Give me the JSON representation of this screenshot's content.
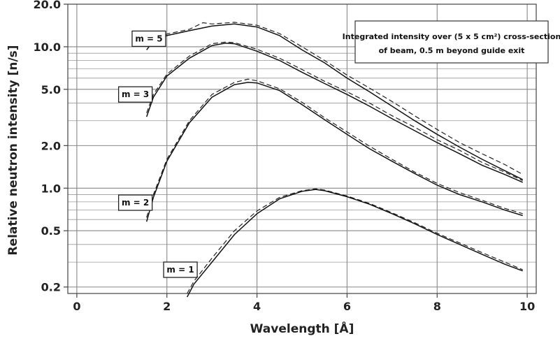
{
  "chart_data": {
    "type": "line",
    "xlabel": "Wavelength [Å]",
    "ylabel": "Relative neutron intensity [n/s]",
    "xlim": [
      -0.2,
      10.2
    ],
    "ylim": [
      0.18,
      20
    ],
    "yscale": "log",
    "grid": true,
    "x_ticks": [
      0,
      2,
      4,
      6,
      8,
      10
    ],
    "x_tick_labels": [
      "0",
      "2",
      "4",
      "6",
      "8",
      "10"
    ],
    "y_ticks": [
      0.2,
      0.5,
      1.0,
      2.0,
      5.0,
      10.0,
      20.0
    ],
    "y_tick_labels": [
      "0.2",
      "0.5",
      "1.0",
      "2.0",
      "5.0",
      "10.0",
      "20.0"
    ],
    "y_minor_gridlines": [
      0.3,
      0.4,
      0.6,
      0.7,
      0.8,
      0.9,
      3,
      4,
      6,
      7,
      8,
      9
    ],
    "annotation": {
      "line1": "Integrated intensity over (5 x 5 cm²) cross-section",
      "line2": "of beam, 0.5 m beyond guide exit"
    },
    "series": [
      {
        "name": "m = 5",
        "label_at": [
          1.6,
          11.4
        ],
        "solid": [
          [
            1.55,
            9.5
          ],
          [
            1.7,
            11.0
          ],
          [
            2.0,
            12.0
          ],
          [
            2.5,
            13.0
          ],
          [
            3.0,
            14.0
          ],
          [
            3.5,
            14.5
          ],
          [
            4.0,
            13.8
          ],
          [
            4.5,
            12.0
          ],
          [
            5.0,
            9.5
          ],
          [
            5.5,
            7.7
          ],
          [
            6.0,
            6.0
          ],
          [
            6.5,
            4.8
          ],
          [
            7.0,
            3.8
          ],
          [
            7.5,
            3.0
          ],
          [
            8.0,
            2.4
          ],
          [
            8.5,
            1.95
          ],
          [
            9.0,
            1.6
          ],
          [
            9.5,
            1.33
          ],
          [
            9.9,
            1.15
          ]
        ],
        "dashed": [
          [
            1.55,
            10.0
          ],
          [
            1.7,
            11.3
          ],
          [
            2.0,
            12.3
          ],
          [
            2.5,
            13.3
          ],
          [
            2.8,
            14.8
          ],
          [
            3.0,
            14.5
          ],
          [
            3.5,
            14.9
          ],
          [
            4.0,
            14.2
          ],
          [
            4.5,
            12.4
          ],
          [
            5.0,
            10.0
          ],
          [
            5.5,
            8.0
          ],
          [
            6.0,
            6.3
          ],
          [
            6.5,
            5.1
          ],
          [
            7.0,
            4.1
          ],
          [
            7.5,
            3.25
          ],
          [
            8.0,
            2.6
          ],
          [
            8.5,
            2.1
          ],
          [
            9.0,
            1.75
          ],
          [
            9.5,
            1.47
          ],
          [
            9.9,
            1.25
          ]
        ]
      },
      {
        "name": "m = 3",
        "label_at": [
          1.3,
          4.6
        ],
        "solid": [
          [
            1.55,
            3.2
          ],
          [
            1.7,
            4.4
          ],
          [
            2.0,
            6.2
          ],
          [
            2.5,
            8.3
          ],
          [
            3.0,
            10.2
          ],
          [
            3.3,
            10.6
          ],
          [
            3.5,
            10.5
          ],
          [
            4.0,
            9.3
          ],
          [
            4.5,
            8.0
          ],
          [
            5.0,
            6.6
          ],
          [
            5.5,
            5.5
          ],
          [
            6.0,
            4.6
          ],
          [
            6.5,
            3.8
          ],
          [
            7.0,
            3.1
          ],
          [
            7.5,
            2.55
          ],
          [
            8.0,
            2.1
          ],
          [
            8.5,
            1.75
          ],
          [
            9.0,
            1.45
          ],
          [
            9.5,
            1.25
          ],
          [
            9.9,
            1.1
          ]
        ],
        "dashed": [
          [
            1.55,
            3.4
          ],
          [
            1.7,
            4.6
          ],
          [
            2.0,
            6.4
          ],
          [
            2.5,
            8.6
          ],
          [
            3.0,
            10.5
          ],
          [
            3.3,
            10.8
          ],
          [
            3.5,
            10.7
          ],
          [
            4.0,
            9.6
          ],
          [
            4.5,
            8.3
          ],
          [
            5.0,
            6.9
          ],
          [
            5.5,
            5.7
          ],
          [
            6.0,
            4.8
          ],
          [
            6.5,
            4.0
          ],
          [
            7.0,
            3.25
          ],
          [
            7.5,
            2.7
          ],
          [
            8.0,
            2.2
          ],
          [
            8.5,
            1.85
          ],
          [
            9.0,
            1.52
          ],
          [
            9.5,
            1.3
          ],
          [
            9.9,
            1.13
          ]
        ]
      },
      {
        "name": "m = 2",
        "label_at": [
          1.3,
          0.79
        ],
        "solid": [
          [
            1.55,
            0.58
          ],
          [
            1.7,
            0.86
          ],
          [
            2.0,
            1.55
          ],
          [
            2.5,
            2.9
          ],
          [
            3.0,
            4.4
          ],
          [
            3.5,
            5.4
          ],
          [
            3.8,
            5.6
          ],
          [
            4.0,
            5.55
          ],
          [
            4.5,
            4.9
          ],
          [
            5.0,
            3.9
          ],
          [
            5.5,
            3.05
          ],
          [
            6.0,
            2.4
          ],
          [
            6.5,
            1.9
          ],
          [
            7.0,
            1.55
          ],
          [
            7.5,
            1.27
          ],
          [
            8.0,
            1.05
          ],
          [
            8.5,
            0.9
          ],
          [
            9.0,
            0.8
          ],
          [
            9.5,
            0.7
          ],
          [
            9.9,
            0.64
          ]
        ],
        "dashed": [
          [
            1.55,
            0.62
          ],
          [
            1.7,
            0.9
          ],
          [
            2.0,
            1.6
          ],
          [
            2.5,
            3.0
          ],
          [
            3.0,
            4.6
          ],
          [
            3.5,
            5.6
          ],
          [
            3.8,
            5.9
          ],
          [
            4.0,
            5.75
          ],
          [
            4.5,
            5.05
          ],
          [
            5.0,
            4.05
          ],
          [
            5.5,
            3.15
          ],
          [
            6.0,
            2.5
          ],
          [
            6.5,
            1.98
          ],
          [
            7.0,
            1.6
          ],
          [
            7.5,
            1.3
          ],
          [
            8.0,
            1.08
          ],
          [
            8.5,
            0.93
          ],
          [
            9.0,
            0.82
          ],
          [
            9.5,
            0.72
          ],
          [
            9.9,
            0.66
          ]
        ]
      },
      {
        "name": "m = 1",
        "label_at": [
          2.3,
          0.265
        ],
        "solid": [
          [
            2.45,
            0.17
          ],
          [
            2.6,
            0.21
          ],
          [
            3.0,
            0.3
          ],
          [
            3.5,
            0.47
          ],
          [
            4.0,
            0.66
          ],
          [
            4.5,
            0.84
          ],
          [
            5.0,
            0.95
          ],
          [
            5.3,
            0.98
          ],
          [
            5.5,
            0.96
          ],
          [
            6.0,
            0.87
          ],
          [
            6.5,
            0.77
          ],
          [
            7.0,
            0.66
          ],
          [
            7.5,
            0.56
          ],
          [
            8.0,
            0.47
          ],
          [
            8.5,
            0.4
          ],
          [
            9.0,
            0.34
          ],
          [
            9.5,
            0.29
          ],
          [
            9.9,
            0.26
          ]
        ],
        "dashed": [
          [
            2.45,
            0.18
          ],
          [
            2.6,
            0.22
          ],
          [
            3.0,
            0.32
          ],
          [
            3.5,
            0.5
          ],
          [
            4.0,
            0.69
          ],
          [
            4.5,
            0.86
          ],
          [
            5.0,
            0.96
          ],
          [
            5.3,
            0.99
          ],
          [
            5.5,
            0.97
          ],
          [
            6.0,
            0.88
          ],
          [
            6.5,
            0.78
          ],
          [
            7.0,
            0.67
          ],
          [
            7.5,
            0.57
          ],
          [
            8.0,
            0.48
          ],
          [
            8.5,
            0.41
          ],
          [
            9.0,
            0.35
          ],
          [
            9.5,
            0.3
          ],
          [
            9.9,
            0.265
          ]
        ]
      }
    ]
  }
}
